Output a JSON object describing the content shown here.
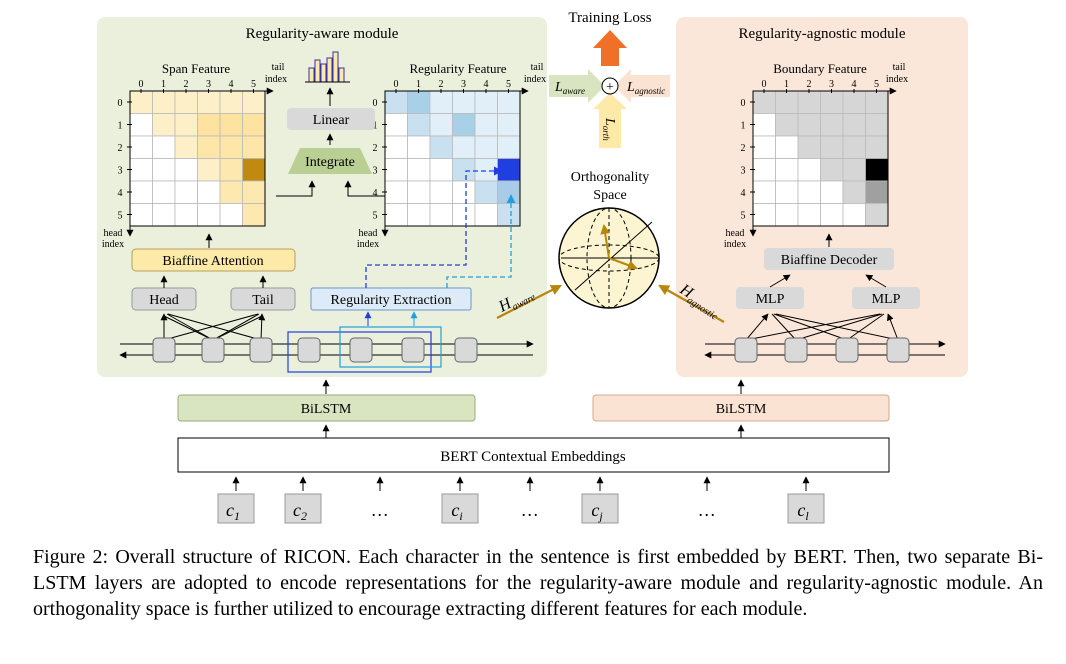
{
  "figure": {
    "aware_module_title": "Regularity-aware module",
    "agnostic_module_title": "Regularity-agnostic module",
    "training_loss": "Training Loss",
    "orthogonality_space": [
      "Orthogonality",
      "Space"
    ],
    "span_feature": "Span Feature",
    "regularity_feature": "Regularity Feature",
    "boundary_feature": "Boundary Feature",
    "tail_index": [
      "tail",
      "index"
    ],
    "head_index": [
      "head",
      "index"
    ],
    "grid_indices": [
      "0",
      "1",
      "2",
      "3",
      "4",
      "5"
    ],
    "linear": "Linear",
    "integrate": "Integrate",
    "biaffine_attention": "Biaffine Attention",
    "head": "Head",
    "tail": "Tail",
    "regularity_extraction": "Regularity Extraction",
    "biaffine_decoder": "Biaffine Decoder",
    "mlp": "MLP",
    "bilstm": "BiLSTM",
    "bert": "BERT Contextual Embeddings",
    "loss_aware": [
      "L",
      "aware"
    ],
    "loss_agnostic": [
      "L",
      "agnostic"
    ],
    "loss_orth": [
      "L",
      "orth"
    ],
    "plus_sign": "+",
    "h_aware": [
      "H",
      "aware"
    ],
    "h_agnostic": [
      "H",
      "agnostic"
    ],
    "inputs": [
      {
        "base": "c",
        "sub": "1"
      },
      {
        "base": "c",
        "sub": "2"
      },
      {
        "base": "…",
        "sub": ""
      },
      {
        "base": "c",
        "sub": "i"
      },
      {
        "base": "…",
        "sub": ""
      },
      {
        "base": "c",
        "sub": "j"
      },
      {
        "base": "…",
        "sub": ""
      },
      {
        "base": "c",
        "sub": "l"
      }
    ],
    "colors": {
      "aware_bg": "#eaf0dc",
      "agnostic_bg": "#fbe7d9",
      "bilstm_aware": "#d9e4c1",
      "bilstm_agnostic": "#fbe3d3",
      "gray_box": "#d9d9d9",
      "biaffine_attn": "#fde9a8",
      "reg_extraction": "#dcebf7",
      "arrow_orange": "#f07028",
      "arrow_gold": "#b8860b",
      "dark_blue": "#1f3fe0",
      "light_blue": "#1ea0e0"
    }
  },
  "caption": {
    "label": "Figure 2:",
    "text": "Overall structure of RICON. Each character in the sentence is first embedded by BERT. Then, two separate Bi-LSTM layers are adopted to encode representations for the regularity-aware module and regularity-agnostic module. An orthogonality space is further utilized to encourage extracting different features for each module."
  }
}
